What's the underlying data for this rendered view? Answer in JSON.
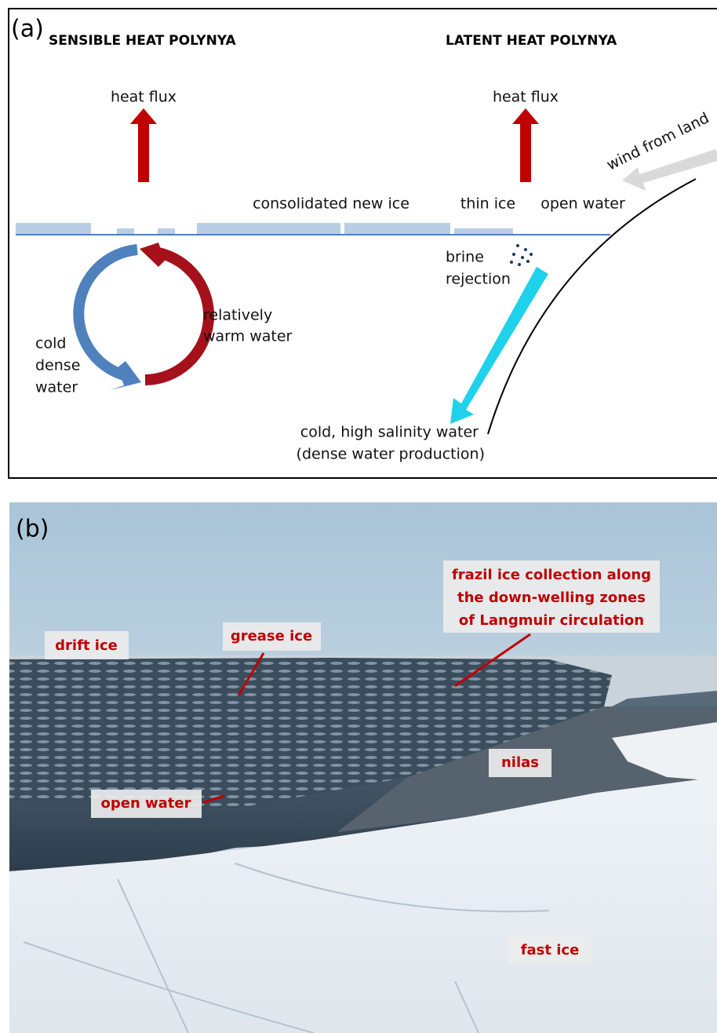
{
  "panel_a": {
    "label": "(a)",
    "sensible_title": "SENSIBLE HEAT POLYNYA",
    "latent_title": "LATENT HEAT POLYNYA",
    "heat_flux_left": "heat flux",
    "heat_flux_right": "heat flux",
    "wind": "wind from land",
    "consolidated_ice": "consolidated new ice",
    "thin_ice": "thin ice",
    "open_water": "open water",
    "brine": [
      "brine",
      "rejection"
    ],
    "warm_water": [
      "relatively",
      "warm water"
    ],
    "cold_water": [
      "cold",
      "dense",
      "water"
    ],
    "dense_water": [
      "cold, high salinity water",
      "(dense water production)"
    ]
  },
  "panel_b": {
    "label": "(b)",
    "drift_ice": "drift ice",
    "grease_ice": "grease ice",
    "frazil": [
      "frazil ice collection along",
      "the down-welling zones",
      "of Langmuir circulation"
    ],
    "nilas": "nilas",
    "open_water": "open water",
    "fast_ice": "fast ice"
  }
}
